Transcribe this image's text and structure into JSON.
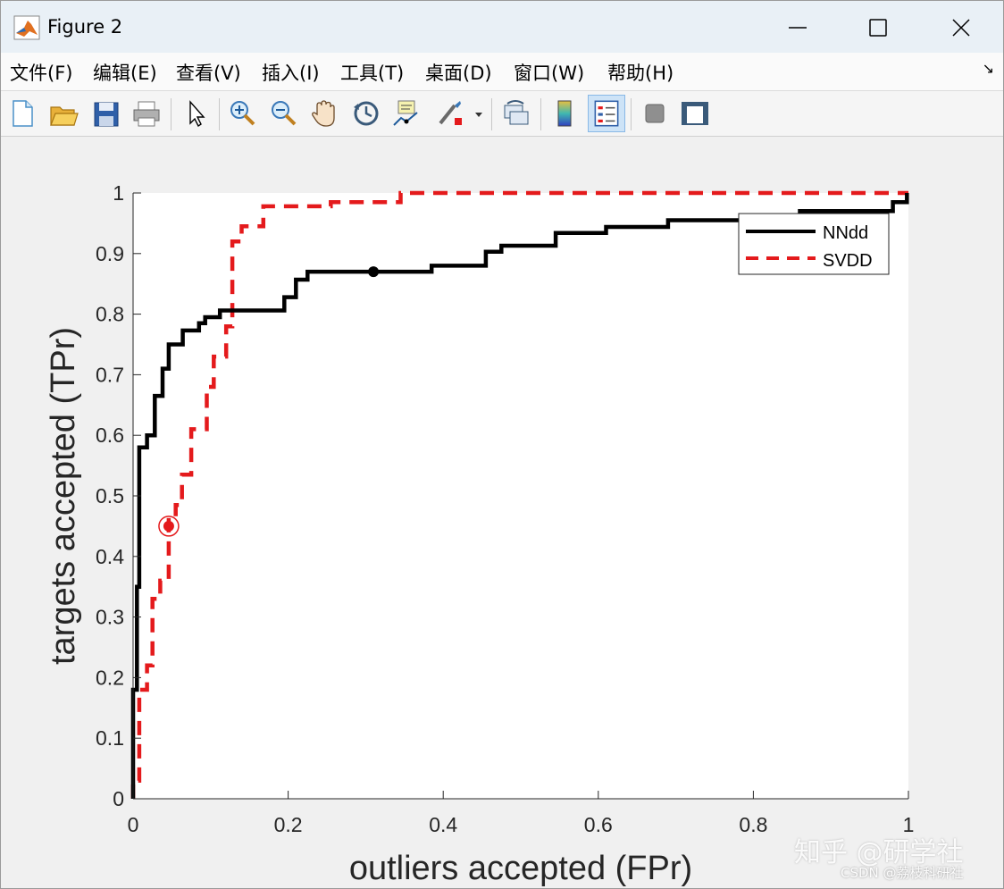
{
  "window": {
    "title": "Figure 2",
    "icon": "matlab-logo-icon",
    "controls": [
      "minimize-icon",
      "maximize-icon",
      "close-icon"
    ]
  },
  "menu": {
    "items": [
      "文件(F)",
      "编辑(E)",
      "查看(V)",
      "插入(I)",
      "工具(T)",
      "桌面(D)",
      "窗口(W)",
      "帮助(H)"
    ],
    "overflow_icon": "undock-arrow-icon"
  },
  "toolbar": {
    "buttons": [
      "new-figure-icon",
      "open-file-icon",
      "save-icon",
      "print-icon",
      "pointer-icon",
      "zoom-in-icon",
      "zoom-out-icon",
      "pan-hand-icon",
      "rotate-3d-icon",
      "data-cursor-icon",
      "brush-icon",
      "link-plot-icon",
      "insert-colorbar-icon",
      "insert-legend-icon",
      "hide-plot-tools-icon",
      "show-plot-tools-icon"
    ],
    "pressed": "insert-legend-icon"
  },
  "chart_data": {
    "type": "line",
    "xlabel": "outliers accepted (FPr)",
    "ylabel": "targets accepted (TPr)",
    "xlim": [
      0,
      1
    ],
    "ylim": [
      0,
      1
    ],
    "xticks": [
      "0",
      "0.2",
      "0.4",
      "0.6",
      "0.8",
      "1"
    ],
    "yticks": [
      "0",
      "0.1",
      "0.2",
      "0.3",
      "0.4",
      "0.5",
      "0.6",
      "0.7",
      "0.8",
      "0.9",
      "1"
    ],
    "grid": false,
    "legend_position": "top-right",
    "series": [
      {
        "name": "NNdd",
        "color": "#000000",
        "style": "solid",
        "points": [
          [
            0,
            0
          ],
          [
            0,
            0.18
          ],
          [
            0.005,
            0.18
          ],
          [
            0.005,
            0.35
          ],
          [
            0.008,
            0.35
          ],
          [
            0.008,
            0.58
          ],
          [
            0.018,
            0.58
          ],
          [
            0.018,
            0.6
          ],
          [
            0.028,
            0.6
          ],
          [
            0.028,
            0.665
          ],
          [
            0.038,
            0.665
          ],
          [
            0.038,
            0.71
          ],
          [
            0.046,
            0.71
          ],
          [
            0.046,
            0.75
          ],
          [
            0.064,
            0.75
          ],
          [
            0.064,
            0.773
          ],
          [
            0.085,
            0.773
          ],
          [
            0.085,
            0.785
          ],
          [
            0.093,
            0.785
          ],
          [
            0.093,
            0.795
          ],
          [
            0.112,
            0.795
          ],
          [
            0.112,
            0.806
          ],
          [
            0.195,
            0.806
          ],
          [
            0.195,
            0.828
          ],
          [
            0.21,
            0.828
          ],
          [
            0.21,
            0.857
          ],
          [
            0.225,
            0.857
          ],
          [
            0.225,
            0.87
          ],
          [
            0.385,
            0.87
          ],
          [
            0.385,
            0.88
          ],
          [
            0.455,
            0.88
          ],
          [
            0.455,
            0.903
          ],
          [
            0.475,
            0.903
          ],
          [
            0.475,
            0.913
          ],
          [
            0.545,
            0.913
          ],
          [
            0.545,
            0.934
          ],
          [
            0.61,
            0.934
          ],
          [
            0.61,
            0.944
          ],
          [
            0.69,
            0.944
          ],
          [
            0.69,
            0.955
          ],
          [
            0.86,
            0.955
          ],
          [
            0.86,
            0.97
          ],
          [
            0.98,
            0.97
          ],
          [
            0.98,
            0.985
          ],
          [
            0.998,
            0.985
          ],
          [
            0.998,
            1
          ]
        ],
        "marker": {
          "x": 0.31,
          "y": 0.87
        }
      },
      {
        "name": "SVDD",
        "color": "#e41a1c",
        "style": "dashed",
        "points": [
          [
            0,
            0
          ],
          [
            0,
            0.03
          ],
          [
            0.008,
            0.03
          ],
          [
            0.008,
            0.18
          ],
          [
            0.018,
            0.18
          ],
          [
            0.018,
            0.22
          ],
          [
            0.025,
            0.22
          ],
          [
            0.025,
            0.33
          ],
          [
            0.035,
            0.33
          ],
          [
            0.035,
            0.36
          ],
          [
            0.046,
            0.36
          ],
          [
            0.046,
            0.46
          ],
          [
            0.055,
            0.46
          ],
          [
            0.055,
            0.485
          ],
          [
            0.063,
            0.485
          ],
          [
            0.063,
            0.535
          ],
          [
            0.075,
            0.535
          ],
          [
            0.075,
            0.61
          ],
          [
            0.095,
            0.61
          ],
          [
            0.095,
            0.68
          ],
          [
            0.104,
            0.68
          ],
          [
            0.104,
            0.73
          ],
          [
            0.12,
            0.73
          ],
          [
            0.12,
            0.78
          ],
          [
            0.128,
            0.78
          ],
          [
            0.128,
            0.92
          ],
          [
            0.14,
            0.92
          ],
          [
            0.14,
            0.945
          ],
          [
            0.168,
            0.945
          ],
          [
            0.168,
            0.978
          ],
          [
            0.255,
            0.978
          ],
          [
            0.255,
            0.985
          ],
          [
            0.345,
            0.985
          ],
          [
            0.345,
            1
          ],
          [
            1,
            1
          ]
        ],
        "marker": {
          "x": 0.046,
          "y": 0.45
        }
      }
    ]
  },
  "watermark": {
    "main": "知乎 @研学社",
    "sub": "CSDN @荔枝科研社"
  }
}
